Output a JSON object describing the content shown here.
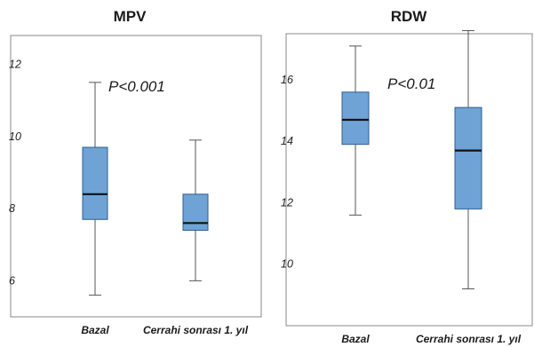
{
  "chart_data": [
    {
      "type": "box",
      "title": "MPV",
      "categories": [
        "Bazal",
        "Cerrahi sonrası 1. yıl"
      ],
      "yticks": [
        6,
        8,
        10,
        12
      ],
      "ylim": [
        5.0,
        12.8
      ],
      "annotation": "P<0.001",
      "boxes": [
        {
          "category": "Bazal",
          "min": 5.6,
          "q1": 7.7,
          "median": 8.4,
          "q3": 9.7,
          "max": 11.5
        },
        {
          "category": "Cerrahi sonrası 1. yıl",
          "min": 6.0,
          "q1": 7.4,
          "median": 7.6,
          "q3": 8.4,
          "max": 9.9
        }
      ]
    },
    {
      "type": "box",
      "title": "RDW",
      "categories": [
        "Bazal",
        "Cerrahi sonrası 1. yıl"
      ],
      "yticks": [
        10,
        12,
        14,
        16
      ],
      "ylim": [
        8.0,
        17.5
      ],
      "annotation": "P<0.01",
      "boxes": [
        {
          "category": "Bazal",
          "min": 11.6,
          "q1": 13.9,
          "median": 14.7,
          "q3": 15.6,
          "max": 17.1
        },
        {
          "category": "Cerrahi sonrası 1. yıl",
          "min": 9.2,
          "q1": 11.8,
          "median": 13.7,
          "q3": 15.1,
          "max": 17.6
        }
      ]
    }
  ]
}
